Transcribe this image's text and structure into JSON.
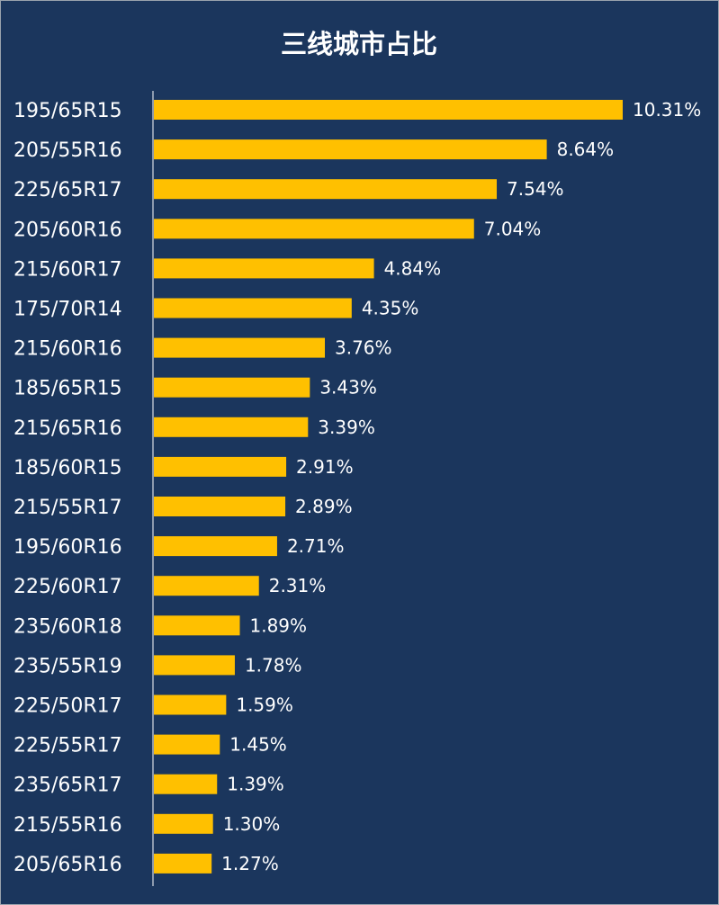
{
  "colors": {
    "background": "#1b365d",
    "bar": "#ffc000",
    "text": "#ffffff",
    "axis": "#ffffff"
  },
  "chart_data": {
    "type": "bar",
    "orientation": "horizontal",
    "title": "三线城市占比",
    "xlabel": "",
    "ylabel": "",
    "grid": false,
    "legend": "none",
    "xlim": [
      0,
      10.31
    ],
    "categories": [
      "195/65R15",
      "205/55R16",
      "225/65R17",
      "205/60R16",
      "215/60R17",
      "175/70R14",
      "215/60R16",
      "185/65R15",
      "215/65R16",
      "185/60R15",
      "215/55R17",
      "195/60R16",
      "225/60R17",
      "235/60R18",
      "235/55R19",
      "225/50R17",
      "225/55R17",
      "235/65R17",
      "215/55R16",
      "205/65R16"
    ],
    "values": [
      10.31,
      8.64,
      7.54,
      7.04,
      4.84,
      4.35,
      3.76,
      3.43,
      3.39,
      2.91,
      2.89,
      2.71,
      2.31,
      1.89,
      1.78,
      1.59,
      1.45,
      1.39,
      1.3,
      1.27
    ],
    "data_labels": [
      "10.31%",
      "8.64%",
      "7.54%",
      "7.04%",
      "4.84%",
      "4.35%",
      "3.76%",
      "3.43%",
      "3.39%",
      "2.91%",
      "2.89%",
      "2.71%",
      "2.31%",
      "1.89%",
      "1.78%",
      "1.59%",
      "1.45%",
      "1.39%",
      "1.30%",
      "1.27%"
    ]
  }
}
